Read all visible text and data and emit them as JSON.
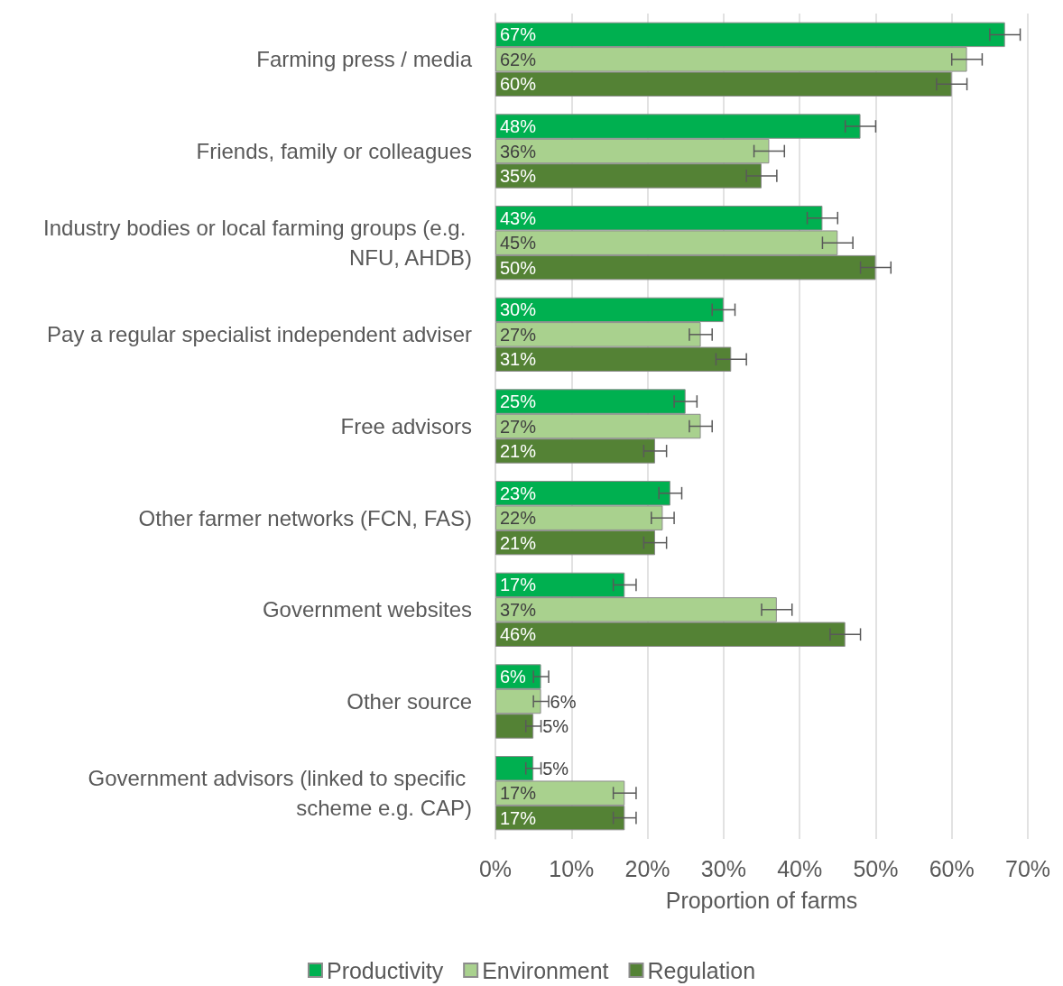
{
  "chart_data": {
    "type": "bar",
    "orientation": "horizontal",
    "xlabel": "Proportion of farms",
    "categories": [
      "Farming press / media",
      "Friends, family or colleagues",
      "Industry bodies or local farming groups (e.g. NFU, AHDB)",
      "Pay a regular specialist independent adviser",
      "Free advisors",
      "Other farmer networks (FCN, FAS)",
      "Government websites",
      "Other source",
      "Government advisors (linked to specific scheme e.g. CAP)"
    ],
    "series": [
      {
        "name": "Productivity",
        "color": "#00b050",
        "values": [
          67,
          48,
          43,
          30,
          25,
          23,
          17,
          6,
          5
        ],
        "value_labels": [
          "67%",
          "48%",
          "43%",
          "30%",
          "25%",
          "23%",
          "17%",
          "6%",
          "5%"
        ],
        "errors": [
          2,
          2,
          2,
          1.5,
          1.5,
          1.5,
          1.5,
          1,
          1
        ]
      },
      {
        "name": "Environment",
        "color": "#a9d18e",
        "values": [
          62,
          36,
          45,
          27,
          27,
          22,
          37,
          6,
          17
        ],
        "value_labels": [
          "62%",
          "36%",
          "45%",
          "27%",
          "27%",
          "22%",
          "37%",
          "6%",
          "17%"
        ],
        "errors": [
          2,
          2,
          2,
          1.5,
          1.5,
          1.5,
          2,
          1,
          1.5
        ]
      },
      {
        "name": "Regulation",
        "color": "#548235",
        "values": [
          60,
          35,
          50,
          31,
          21,
          21,
          46,
          5,
          17
        ],
        "value_labels": [
          "60%",
          "35%",
          "50%",
          "31%",
          "21%",
          "21%",
          "46%",
          "5%",
          "17%"
        ],
        "errors": [
          2,
          2,
          2,
          2,
          1.5,
          1.5,
          2,
          1,
          1.5
        ]
      }
    ],
    "xlim": [
      0,
      70
    ],
    "xticks": [
      {
        "value": 0,
        "label": "0%"
      },
      {
        "value": 10,
        "label": "10%"
      },
      {
        "value": 20,
        "label": "20%"
      },
      {
        "value": 30,
        "label": "30%"
      },
      {
        "value": 40,
        "label": "40%"
      },
      {
        "value": 50,
        "label": "50%"
      },
      {
        "value": 60,
        "label": "60%"
      },
      {
        "value": 70,
        "label": "70%"
      }
    ],
    "grid": "x",
    "legend": "bottom"
  }
}
